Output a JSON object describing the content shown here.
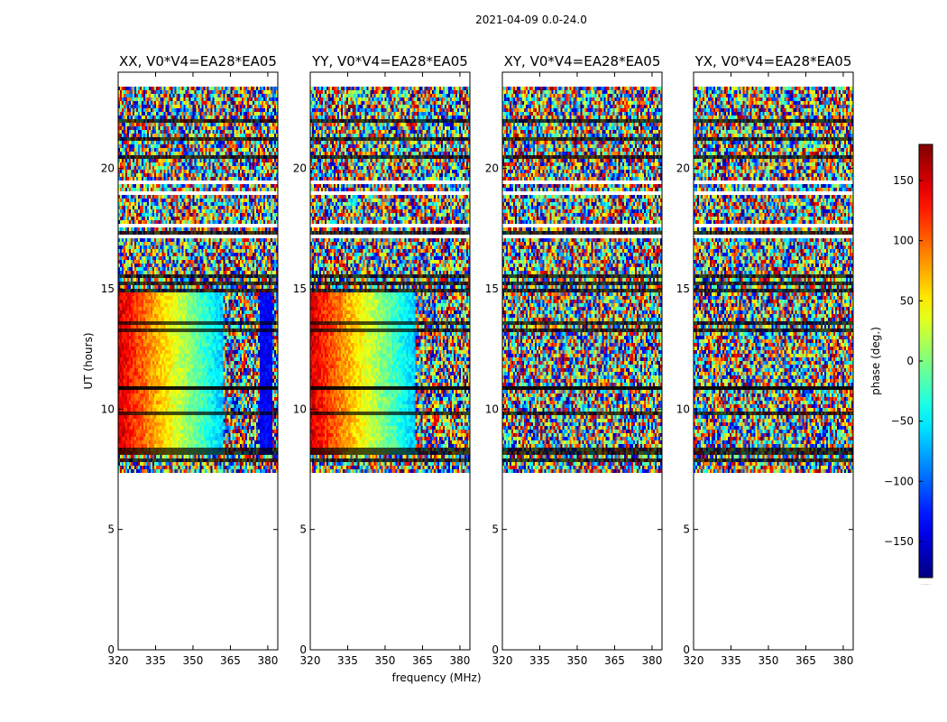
{
  "figure": {
    "suptitle": "2021-04-09 0.0-24.0"
  },
  "chart_data": {
    "type": "heatmap",
    "title": "2021-04-09 0.0-24.0",
    "xlabel": "frequency (MHz)",
    "ylabel": "UT (hours)",
    "xlim": [
      320,
      384
    ],
    "ylim": [
      0,
      24
    ],
    "x_ticks": [
      320,
      335,
      350,
      365,
      380
    ],
    "y_ticks": [
      0,
      5,
      10,
      15,
      20
    ],
    "data_extent_hours": [
      7.3,
      23.4
    ],
    "panels": [
      {
        "title": "XX, V0*V4=EA28*EA05",
        "polarization": "XX",
        "mode": "parallel"
      },
      {
        "title": "YY, V0*V4=EA28*EA05",
        "polarization": "YY",
        "mode": "parallel"
      },
      {
        "title": "XY, V0*V4=EA28*EA05",
        "polarization": "XY",
        "mode": "cross"
      },
      {
        "title": "YX, V0*V4=EA28*EA05",
        "polarization": "YX",
        "mode": "cross"
      }
    ],
    "colorbar": {
      "label": "phase (deg.)",
      "range": [
        -180,
        180
      ],
      "ticks": [
        150,
        100,
        50,
        0,
        -50,
        -100,
        -150
      ],
      "tick_labels": [
        "150",
        "100",
        "50",
        "0",
        "−50",
        "−100",
        "−150"
      ],
      "colormap": "jet",
      "footer": "....."
    }
  }
}
